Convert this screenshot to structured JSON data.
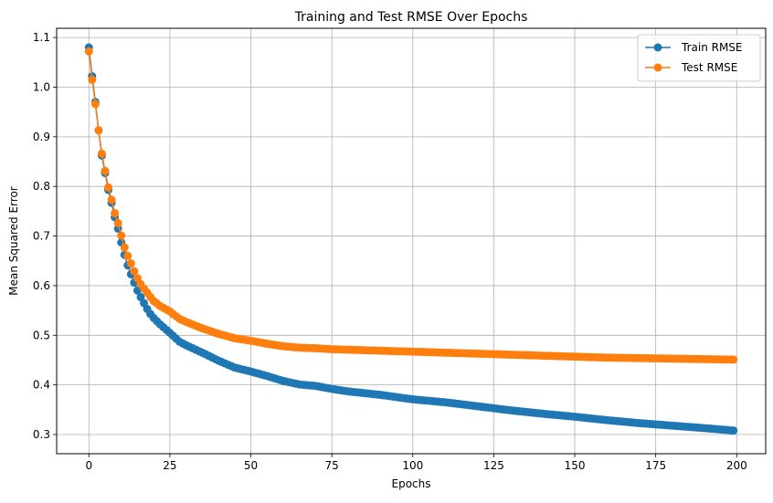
{
  "chart_data": {
    "type": "line",
    "title": "Training and Test RMSE Over Epochs",
    "xlabel": "Epochs",
    "ylabel": "Mean Squared Error",
    "xlim": [
      -9.95,
      208.95
    ],
    "ylim": [
      0.2614,
      1.1186
    ],
    "xticks": [
      0,
      25,
      50,
      75,
      100,
      125,
      150,
      175,
      200
    ],
    "yticks": [
      0.3,
      0.4,
      0.5,
      0.6,
      0.7,
      0.8,
      0.9,
      1.0,
      1.1
    ],
    "grid": true,
    "legend_position": "top-right",
    "x": {
      "start": 0,
      "end": 199,
      "step": 1
    },
    "series": [
      {
        "name": "Train RMSE",
        "color": "#1f77b4",
        "marker": "circle",
        "anchors": [
          [
            0,
            1.08
          ],
          [
            1,
            1.022
          ],
          [
            2,
            0.97
          ],
          [
            3,
            0.913
          ],
          [
            4,
            0.862
          ],
          [
            5,
            0.827
          ],
          [
            6,
            0.793
          ],
          [
            7,
            0.767
          ],
          [
            8,
            0.738
          ],
          [
            9,
            0.715
          ],
          [
            10,
            0.687
          ],
          [
            11,
            0.662
          ],
          [
            12,
            0.641
          ],
          [
            13,
            0.623
          ],
          [
            14,
            0.606
          ],
          [
            15,
            0.59
          ],
          [
            16,
            0.577
          ],
          [
            17,
            0.565
          ],
          [
            18,
            0.553
          ],
          [
            19,
            0.543
          ],
          [
            20,
            0.535
          ],
          [
            22,
            0.522
          ],
          [
            25,
            0.505
          ],
          [
            28,
            0.487
          ],
          [
            30,
            0.48
          ],
          [
            35,
            0.465
          ],
          [
            40,
            0.449
          ],
          [
            45,
            0.435
          ],
          [
            50,
            0.427
          ],
          [
            55,
            0.418
          ],
          [
            60,
            0.408
          ],
          [
            65,
            0.401
          ],
          [
            70,
            0.398
          ],
          [
            75,
            0.392
          ],
          [
            80,
            0.387
          ],
          [
            90,
            0.38
          ],
          [
            100,
            0.371
          ],
          [
            110,
            0.365
          ],
          [
            120,
            0.357
          ],
          [
            130,
            0.349
          ],
          [
            140,
            0.342
          ],
          [
            150,
            0.336
          ],
          [
            160,
            0.329
          ],
          [
            170,
            0.323
          ],
          [
            180,
            0.318
          ],
          [
            190,
            0.313
          ],
          [
            199,
            0.308
          ]
        ]
      },
      {
        "name": "Test RMSE",
        "color": "#ff7f0e",
        "marker": "circle",
        "anchors": [
          [
            0,
            1.072
          ],
          [
            1,
            1.015
          ],
          [
            2,
            0.966
          ],
          [
            3,
            0.913
          ],
          [
            4,
            0.866
          ],
          [
            5,
            0.831
          ],
          [
            6,
            0.798
          ],
          [
            7,
            0.773
          ],
          [
            8,
            0.746
          ],
          [
            9,
            0.726
          ],
          [
            10,
            0.701
          ],
          [
            11,
            0.677
          ],
          [
            12,
            0.66
          ],
          [
            13,
            0.645
          ],
          [
            14,
            0.629
          ],
          [
            15,
            0.615
          ],
          [
            16,
            0.603
          ],
          [
            17,
            0.594
          ],
          [
            18,
            0.586
          ],
          [
            19,
            0.577
          ],
          [
            20,
            0.569
          ],
          [
            22,
            0.559
          ],
          [
            25,
            0.548
          ],
          [
            28,
            0.533
          ],
          [
            30,
            0.527
          ],
          [
            35,
            0.514
          ],
          [
            40,
            0.503
          ],
          [
            45,
            0.494
          ],
          [
            50,
            0.489
          ],
          [
            55,
            0.483
          ],
          [
            60,
            0.478
          ],
          [
            65,
            0.475
          ],
          [
            70,
            0.474
          ],
          [
            75,
            0.472
          ],
          [
            80,
            0.471
          ],
          [
            90,
            0.469
          ],
          [
            100,
            0.467
          ],
          [
            110,
            0.465
          ],
          [
            120,
            0.463
          ],
          [
            130,
            0.461
          ],
          [
            140,
            0.459
          ],
          [
            150,
            0.457
          ],
          [
            160,
            0.455
          ],
          [
            170,
            0.454
          ],
          [
            180,
            0.453
          ],
          [
            190,
            0.452
          ],
          [
            199,
            0.451
          ]
        ]
      }
    ]
  }
}
